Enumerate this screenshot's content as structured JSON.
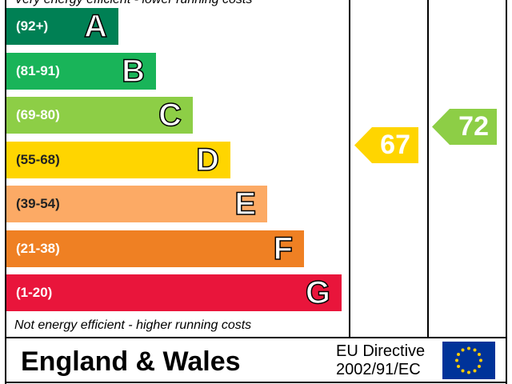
{
  "chart_data": {
    "type": "bar",
    "top_caption": "Very energy efficient - lower running costs",
    "bottom_caption": "Not energy efficient - higher running costs",
    "bands": [
      {
        "letter": "A",
        "range": "(92+)",
        "color": "#008054"
      },
      {
        "letter": "B",
        "range": "(81-91)",
        "color": "#19b459"
      },
      {
        "letter": "C",
        "range": "(69-80)",
        "color": "#8dce46"
      },
      {
        "letter": "D",
        "range": "(55-68)",
        "color": "#ffd500"
      },
      {
        "letter": "E",
        "range": "(39-54)",
        "color": "#fcaa65"
      },
      {
        "letter": "F",
        "range": "(21-38)",
        "color": "#ef8023"
      },
      {
        "letter": "G",
        "range": "(1-20)",
        "color": "#e9153b"
      }
    ],
    "current": {
      "value": "67",
      "band": "D",
      "color": "#ffd500"
    },
    "potential": {
      "value": "72",
      "band": "C",
      "color": "#8dce46"
    }
  },
  "footer": {
    "region": "England & Wales",
    "directive_line1": "EU Directive",
    "directive_line2": "2002/91/EC"
  }
}
